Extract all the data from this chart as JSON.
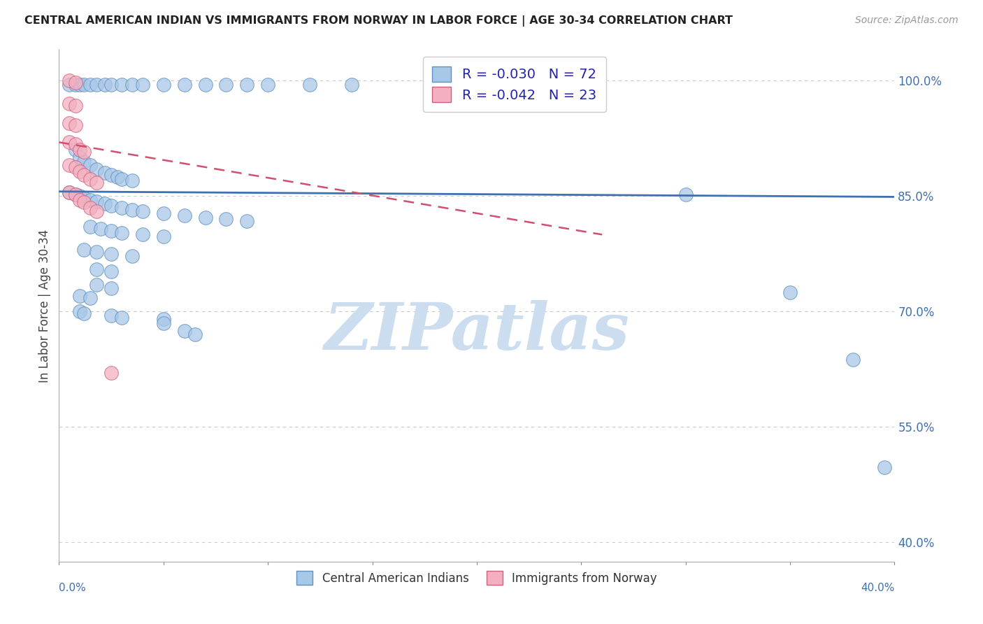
{
  "title": "CENTRAL AMERICAN INDIAN VS IMMIGRANTS FROM NORWAY IN LABOR FORCE | AGE 30-34 CORRELATION CHART",
  "source": "Source: ZipAtlas.com",
  "ylabel": "In Labor Force | Age 30-34",
  "y_tick_values": [
    0.4,
    0.55,
    0.7,
    0.85,
    1.0
  ],
  "xlim": [
    0.0,
    0.4
  ],
  "ylim": [
    0.375,
    1.04
  ],
  "blue_R": -0.03,
  "blue_N": 72,
  "pink_R": -0.042,
  "pink_N": 23,
  "blue_color": "#a8c8e8",
  "pink_color": "#f4b0c0",
  "blue_edge_color": "#6090c0",
  "pink_edge_color": "#d06080",
  "blue_line_color": "#4070b0",
  "pink_line_color": "#d05070",
  "watermark": "ZIPatlas",
  "watermark_color": "#ccddf0",
  "blue_trend": [
    0.0,
    0.4,
    0.856,
    0.849
  ],
  "pink_trend": [
    0.0,
    0.26,
    0.92,
    0.8
  ],
  "blue_dots": [
    [
      0.005,
      0.995
    ],
    [
      0.008,
      0.995
    ],
    [
      0.01,
      0.995
    ],
    [
      0.012,
      0.995
    ],
    [
      0.015,
      0.995
    ],
    [
      0.018,
      0.995
    ],
    [
      0.022,
      0.995
    ],
    [
      0.025,
      0.995
    ],
    [
      0.03,
      0.995
    ],
    [
      0.035,
      0.995
    ],
    [
      0.04,
      0.995
    ],
    [
      0.05,
      0.995
    ],
    [
      0.06,
      0.995
    ],
    [
      0.07,
      0.995
    ],
    [
      0.08,
      0.995
    ],
    [
      0.09,
      0.995
    ],
    [
      0.1,
      0.995
    ],
    [
      0.12,
      0.995
    ],
    [
      0.14,
      0.995
    ],
    [
      0.008,
      0.91
    ],
    [
      0.01,
      0.9
    ],
    [
      0.012,
      0.895
    ],
    [
      0.015,
      0.89
    ],
    [
      0.018,
      0.885
    ],
    [
      0.022,
      0.88
    ],
    [
      0.025,
      0.878
    ],
    [
      0.028,
      0.875
    ],
    [
      0.03,
      0.872
    ],
    [
      0.035,
      0.87
    ],
    [
      0.005,
      0.855
    ],
    [
      0.008,
      0.852
    ],
    [
      0.01,
      0.85
    ],
    [
      0.012,
      0.848
    ],
    [
      0.015,
      0.845
    ],
    [
      0.018,
      0.843
    ],
    [
      0.022,
      0.84
    ],
    [
      0.025,
      0.838
    ],
    [
      0.03,
      0.835
    ],
    [
      0.035,
      0.832
    ],
    [
      0.04,
      0.83
    ],
    [
      0.05,
      0.828
    ],
    [
      0.06,
      0.825
    ],
    [
      0.07,
      0.822
    ],
    [
      0.08,
      0.82
    ],
    [
      0.09,
      0.818
    ],
    [
      0.015,
      0.81
    ],
    [
      0.02,
      0.808
    ],
    [
      0.025,
      0.805
    ],
    [
      0.03,
      0.802
    ],
    [
      0.04,
      0.8
    ],
    [
      0.05,
      0.798
    ],
    [
      0.012,
      0.78
    ],
    [
      0.018,
      0.778
    ],
    [
      0.025,
      0.775
    ],
    [
      0.035,
      0.772
    ],
    [
      0.018,
      0.755
    ],
    [
      0.025,
      0.752
    ],
    [
      0.018,
      0.735
    ],
    [
      0.025,
      0.73
    ],
    [
      0.01,
      0.72
    ],
    [
      0.015,
      0.718
    ],
    [
      0.01,
      0.7
    ],
    [
      0.012,
      0.698
    ],
    [
      0.025,
      0.695
    ],
    [
      0.03,
      0.692
    ],
    [
      0.05,
      0.69
    ],
    [
      0.05,
      0.685
    ],
    [
      0.06,
      0.675
    ],
    [
      0.065,
      0.67
    ],
    [
      0.3,
      0.852
    ],
    [
      0.35,
      0.725
    ],
    [
      0.38,
      0.638
    ],
    [
      0.395,
      0.498
    ]
  ],
  "pink_dots": [
    [
      0.005,
      1.0
    ],
    [
      0.008,
      0.998
    ],
    [
      0.005,
      0.97
    ],
    [
      0.008,
      0.968
    ],
    [
      0.005,
      0.945
    ],
    [
      0.008,
      0.942
    ],
    [
      0.005,
      0.92
    ],
    [
      0.008,
      0.918
    ],
    [
      0.01,
      0.91
    ],
    [
      0.012,
      0.908
    ],
    [
      0.005,
      0.89
    ],
    [
      0.008,
      0.888
    ],
    [
      0.01,
      0.882
    ],
    [
      0.012,
      0.878
    ],
    [
      0.015,
      0.872
    ],
    [
      0.018,
      0.868
    ],
    [
      0.005,
      0.855
    ],
    [
      0.008,
      0.852
    ],
    [
      0.01,
      0.845
    ],
    [
      0.012,
      0.842
    ],
    [
      0.015,
      0.835
    ],
    [
      0.018,
      0.83
    ],
    [
      0.025,
      0.62
    ]
  ]
}
